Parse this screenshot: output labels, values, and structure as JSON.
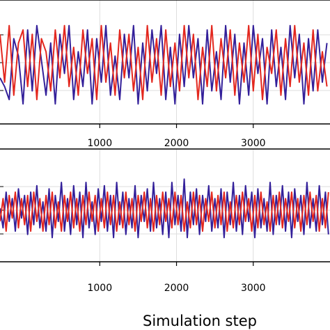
{
  "chart_data": [
    {
      "type": "line",
      "panel": "top",
      "xlim": [
        -300,
        4000
      ],
      "ylim": [
        -1.2,
        1.2
      ],
      "grid": true,
      "x_ticks": [
        1000,
        2000,
        3000
      ],
      "x_tick_labels": [
        "1000",
        "2000",
        "3000"
      ],
      "series": [
        {
          "color": "#33209a",
          "x": [
            -300,
            -240,
            -180,
            -120,
            -60,
            0,
            60,
            120,
            180,
            240,
            300,
            360,
            420,
            480,
            540,
            600,
            660,
            720,
            780,
            840,
            900,
            960,
            1020,
            1080,
            1140,
            1200,
            1260,
            1320,
            1380,
            1440,
            1500,
            1560,
            1620,
            1680,
            1740,
            1800,
            1860,
            1920,
            1980,
            2040,
            2100,
            2160,
            2220,
            2280,
            2340,
            2400,
            2460,
            2520,
            2580,
            2640,
            2700,
            2760,
            2820,
            2880,
            2940,
            3000,
            3060,
            3120,
            3180,
            3240,
            3300,
            3360,
            3420,
            3480,
            3540,
            3600,
            3660,
            3720,
            3780,
            3840,
            3900,
            3960
          ],
          "y": [
            -0.3,
            -0.5,
            -0.8,
            0.6,
            0.2,
            -0.9,
            0.8,
            -0.6,
            0.9,
            0.1,
            -0.7,
            0.5,
            -0.9,
            0.7,
            -0.2,
            0.9,
            -0.8,
            0.3,
            -0.5,
            0.8,
            -0.9,
            0.6,
            -0.4,
            0.9,
            -0.7,
            0.2,
            -0.8,
            0.7,
            -0.3,
            0.9,
            -0.9,
            0.5,
            -0.6,
            0.8,
            -0.2,
            0.9,
            -0.8,
            0.4,
            -0.9,
            0.7,
            -0.5,
            0.9,
            -0.3,
            0.6,
            -0.9,
            0.8,
            -0.6,
            0.3,
            -0.8,
            0.9,
            -0.4,
            0.7,
            -0.9,
            0.5,
            -0.7,
            0.9,
            -0.2,
            0.6,
            -0.9,
            0.8,
            -0.5,
            0.4,
            -0.8,
            0.9,
            -0.3,
            0.7,
            -0.9,
            0.6,
            -0.6,
            0.8,
            -0.4,
            0.5
          ]
        },
        {
          "color": "#e3271e",
          "x": [
            -300,
            -240,
            -180,
            -120,
            -60,
            0,
            60,
            120,
            180,
            240,
            300,
            360,
            420,
            480,
            540,
            600,
            660,
            720,
            780,
            840,
            900,
            960,
            1020,
            1080,
            1140,
            1200,
            1260,
            1320,
            1380,
            1440,
            1500,
            1560,
            1620,
            1680,
            1740,
            1800,
            1860,
            1920,
            1980,
            2040,
            2100,
            2160,
            2220,
            2280,
            2340,
            2400,
            2460,
            2520,
            2580,
            2640,
            2700,
            2760,
            2820,
            2880,
            2940,
            3000,
            3060,
            3120,
            3180,
            3240,
            3300,
            3360,
            3420,
            3480,
            3540,
            3600,
            3660,
            3720,
            3780,
            3840,
            3900,
            3960
          ],
          "y": [
            0.7,
            -0.4,
            0.9,
            -0.7,
            0.5,
            0.8,
            -0.5,
            0.7,
            -0.8,
            0.6,
            0.3,
            -0.6,
            0.8,
            -0.3,
            0.9,
            -0.5,
            0.4,
            -0.7,
            0.8,
            -0.2,
            0.6,
            -0.8,
            0.9,
            -0.4,
            0.5,
            -0.7,
            0.8,
            -0.3,
            0.7,
            -0.6,
            0.4,
            -0.8,
            0.9,
            -0.4,
            0.6,
            -0.7,
            0.8,
            -0.5,
            0.5,
            -0.6,
            0.9,
            -0.3,
            0.7,
            -0.8,
            0.4,
            -0.5,
            0.9,
            -0.6,
            0.6,
            -0.3,
            0.8,
            -0.7,
            0.5,
            -0.4,
            0.9,
            -0.6,
            0.7,
            -0.8,
            0.4,
            -0.2,
            0.8,
            -0.7,
            0.6,
            -0.5,
            0.9,
            -0.4,
            0.5,
            -0.7,
            0.8,
            -0.6,
            0.3,
            -0.5
          ]
        }
      ]
    },
    {
      "type": "line",
      "panel": "bottom",
      "xlim": [
        -300,
        4000
      ],
      "ylim": [
        -1.2,
        1.2
      ],
      "grid": true,
      "x_ticks": [
        1000,
        2000,
        3000
      ],
      "x_tick_labels": [
        "1000",
        "2000",
        "3000"
      ],
      "xlabel": "Simulation step",
      "series": [
        {
          "color": "#33209a",
          "x": [
            -300,
            -260,
            -220,
            -180,
            -140,
            -100,
            -60,
            -20,
            20,
            60,
            100,
            140,
            180,
            220,
            260,
            300,
            340,
            380,
            420,
            460,
            500,
            540,
            580,
            620,
            660,
            700,
            740,
            780,
            820,
            860,
            900,
            940,
            980,
            1020,
            1060,
            1100,
            1140,
            1180,
            1220,
            1260,
            1300,
            1340,
            1380,
            1420,
            1460,
            1500,
            1540,
            1580,
            1620,
            1660,
            1700,
            1740,
            1780,
            1820,
            1860,
            1900,
            1940,
            1980,
            2020,
            2060,
            2100,
            2140,
            2180,
            2220,
            2260,
            2300,
            2340,
            2380,
            2420,
            2460,
            2500,
            2540,
            2580,
            2620,
            2660,
            2700,
            2740,
            2780,
            2820,
            2860,
            2900,
            2940,
            2980,
            3020,
            3060,
            3100,
            3140,
            3180,
            3220,
            3260,
            3300,
            3340,
            3380,
            3420,
            3460,
            3500,
            3540,
            3580,
            3620,
            3660,
            3700,
            3740,
            3780,
            3820,
            3860,
            3900,
            3940,
            3980
          ],
          "y": [
            0.1,
            -0.5,
            0.6,
            -0.3,
            0.4,
            -0.6,
            0.7,
            -0.2,
            0.5,
            -0.7,
            0.6,
            -0.4,
            0.8,
            -0.5,
            0.3,
            -0.6,
            0.7,
            -0.8,
            0.5,
            -0.3,
            0.9,
            -0.6,
            0.4,
            -0.7,
            0.8,
            -0.4,
            0.6,
            -0.8,
            0.9,
            -0.5,
            0.3,
            -0.7,
            0.7,
            -0.3,
            0.8,
            -0.6,
            0.5,
            -0.8,
            0.9,
            -0.4,
            0.6,
            -0.7,
            0.4,
            -0.5,
            0.8,
            -0.8,
            0.5,
            -0.3,
            0.7,
            -0.6,
            0.9,
            -0.5,
            0.4,
            -0.7,
            0.6,
            -0.8,
            0.9,
            -0.4,
            0.5,
            -0.6,
            1.0,
            -0.8,
            0.6,
            -0.4,
            0.7,
            -0.7,
            0.5,
            -0.3,
            0.8,
            -0.6,
            0.4,
            -0.5,
            0.7,
            -0.8,
            0.6,
            -0.4,
            0.9,
            -0.6,
            0.5,
            -0.7,
            0.8,
            -0.3,
            0.6,
            -0.8,
            0.7,
            -0.5,
            0.4,
            -0.6,
            0.9,
            -0.7,
            0.5,
            -0.4,
            0.8,
            -0.6,
            0.6,
            -0.8,
            0.7,
            -0.3,
            0.5,
            -0.7,
            0.9,
            -0.5,
            0.4,
            -0.6,
            0.8,
            -0.4,
            0.6,
            -0.7
          ]
        },
        {
          "color": "#e3271e",
          "x": [
            -300,
            -260,
            -220,
            -180,
            -140,
            -100,
            -60,
            -20,
            20,
            60,
            100,
            140,
            180,
            220,
            260,
            300,
            340,
            380,
            420,
            460,
            500,
            540,
            580,
            620,
            660,
            700,
            740,
            780,
            820,
            860,
            900,
            940,
            980,
            1020,
            1060,
            1100,
            1140,
            1180,
            1220,
            1260,
            1300,
            1340,
            1380,
            1420,
            1460,
            1500,
            1540,
            1580,
            1620,
            1660,
            1700,
            1740,
            1780,
            1820,
            1860,
            1900,
            1940,
            1980,
            2020,
            2060,
            2100,
            2140,
            2180,
            2220,
            2260,
            2300,
            2340,
            2380,
            2420,
            2460,
            2500,
            2540,
            2580,
            2620,
            2660,
            2700,
            2740,
            2780,
            2820,
            2860,
            2900,
            2940,
            2980,
            3020,
            3060,
            3100,
            3140,
            3180,
            3220,
            3260,
            3300,
            3340,
            3380,
            3420,
            3460,
            3500,
            3540,
            3580,
            3620,
            3660,
            3700,
            3740,
            3780,
            3820,
            3860,
            3900,
            3940,
            3980
          ],
          "y": [
            -0.3,
            0.4,
            -0.6,
            0.5,
            -0.2,
            0.6,
            -0.5,
            0.4,
            -0.4,
            0.5,
            -0.6,
            0.6,
            -0.3,
            0.4,
            -0.6,
            0.5,
            -0.4,
            0.6,
            -0.5,
            0.3,
            -0.6,
            0.5,
            -0.3,
            0.6,
            -0.5,
            0.4,
            -0.6,
            0.5,
            -0.4,
            0.6,
            -0.3,
            0.5,
            -0.6,
            0.4,
            -0.5,
            0.6,
            -0.4,
            0.5,
            -0.6,
            0.3,
            -0.5,
            0.6,
            -0.4,
            0.4,
            -0.6,
            0.5,
            -0.3,
            0.6,
            -0.5,
            0.4,
            -0.6,
            0.5,
            -0.4,
            0.6,
            -0.3,
            0.4,
            -0.5,
            0.6,
            -0.4,
            0.5,
            -0.6,
            0.3,
            -0.5,
            0.6,
            -0.4,
            0.5,
            -0.6,
            0.4,
            -0.3,
            0.6,
            -0.5,
            0.5,
            -0.4,
            0.6,
            -0.6,
            0.3,
            -0.5,
            0.5,
            -0.4,
            0.6,
            -0.3,
            0.4,
            -0.6,
            0.5,
            -0.5,
            0.6,
            -0.4,
            0.3,
            -0.6,
            0.5,
            -0.4,
            0.6,
            -0.5,
            0.4,
            -0.3,
            0.6,
            -0.5,
            0.4,
            -0.6,
            0.5,
            -0.4,
            0.6,
            -0.3,
            0.5,
            -0.6,
            0.4,
            -0.5,
            0.6
          ]
        }
      ]
    }
  ]
}
